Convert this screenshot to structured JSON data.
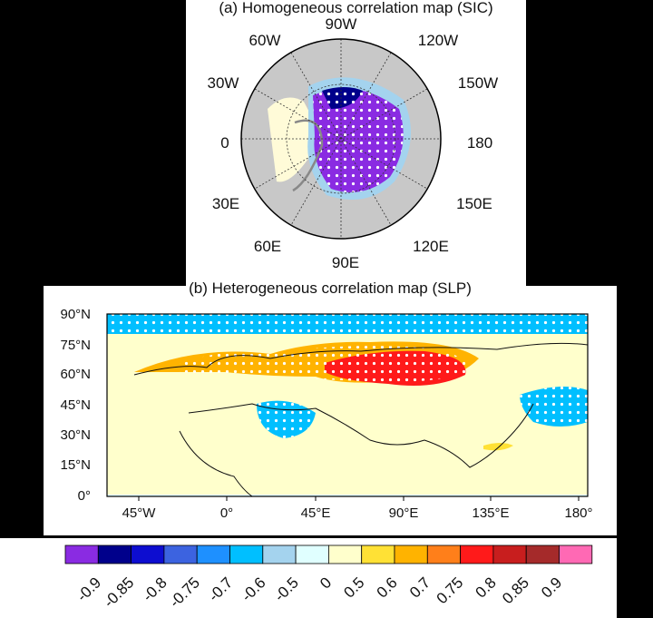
{
  "panel_a": {
    "title": "(a) Homogeneous correlation map (SIC)",
    "longitude_labels": [
      "90W",
      "120W",
      "150W",
      "180",
      "150E",
      "120E",
      "90E",
      "60E",
      "30E",
      "0",
      "30W",
      "60W"
    ]
  },
  "panel_b": {
    "title": "(b) Heterogeneous correlation map (SLP)",
    "y_ticks": [
      "90°N",
      "75°N",
      "60°N",
      "45°N",
      "30°N",
      "15°N",
      "0°"
    ],
    "x_ticks": [
      "45°W",
      "0°",
      "45°E",
      "90°E",
      "135°E",
      "180°"
    ]
  },
  "colorbar": {
    "labels": [
      "-0.9",
      "-0.85",
      "-0.8",
      "-0.75",
      "-0.7",
      "-0.6",
      "-0.5",
      "0",
      "0.5",
      "0.6",
      "0.7",
      "0.75",
      "0.8",
      "0.85",
      "0.9"
    ],
    "colors": [
      "#8a2be2",
      "#00008b",
      "#0d0dd0",
      "#3c63e0",
      "#1e90ff",
      "#00bfff",
      "#a4d3ee",
      "#e0ffff",
      "#ffffcc",
      "#ffe135",
      "#ffb300",
      "#ff7f1a",
      "#ff1a1a",
      "#c81e1e",
      "#a52a2a",
      "#ff69b4"
    ]
  }
}
